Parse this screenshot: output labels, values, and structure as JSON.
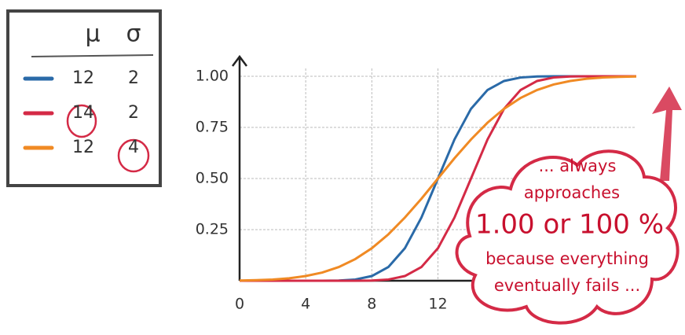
{
  "chart_data": {
    "type": "line",
    "x": [
      0,
      1,
      2,
      3,
      4,
      5,
      6,
      7,
      8,
      9,
      10,
      11,
      12,
      13,
      14,
      15,
      16,
      17,
      18,
      19,
      20,
      21,
      22,
      23,
      24
    ],
    "xlim": [
      0,
      24
    ],
    "xticks": [
      0,
      4,
      8,
      12
    ],
    "ylim": [
      0,
      1
    ],
    "yticks": [
      {
        "value": 0.25,
        "label": "0.25"
      },
      {
        "value": 0.5,
        "label": "0.50"
      },
      {
        "value": 0.75,
        "label": "0.75"
      },
      {
        "value": 1,
        "label": "1.00"
      }
    ],
    "grid": true,
    "legend_header": [
      "μ",
      "σ"
    ],
    "series": [
      {
        "name": "blue",
        "color": "#2a6aa8",
        "mu": 12,
        "sigma": 2,
        "values": [
          0,
          0,
          0,
          0,
          0,
          0,
          0.001,
          0.006,
          0.023,
          0.067,
          0.159,
          0.309,
          0.5,
          0.691,
          0.841,
          0.933,
          0.977,
          0.994,
          0.999,
          1,
          1,
          1,
          1,
          1,
          1
        ]
      },
      {
        "name": "red",
        "color": "#d42a46",
        "mu": 14,
        "sigma": 2,
        "values": [
          0,
          0,
          0,
          0,
          0,
          0,
          0,
          0,
          0.001,
          0.006,
          0.023,
          0.067,
          0.159,
          0.309,
          0.5,
          0.691,
          0.841,
          0.933,
          0.977,
          0.994,
          0.999,
          1,
          1,
          1,
          1
        ]
      },
      {
        "name": "orange",
        "color": "#f08a24",
        "mu": 12,
        "sigma": 4,
        "values": [
          0.001,
          0.003,
          0.006,
          0.012,
          0.023,
          0.04,
          0.067,
          0.106,
          0.159,
          0.227,
          0.309,
          0.401,
          0.5,
          0.599,
          0.691,
          0.773,
          0.841,
          0.894,
          0.933,
          0.96,
          0.977,
          0.988,
          0.994,
          0.997,
          0.999
        ]
      }
    ],
    "annotation": [
      "... always",
      "approaches",
      "1.00 or 100 %",
      "because everything",
      "eventually fails ..."
    ]
  }
}
